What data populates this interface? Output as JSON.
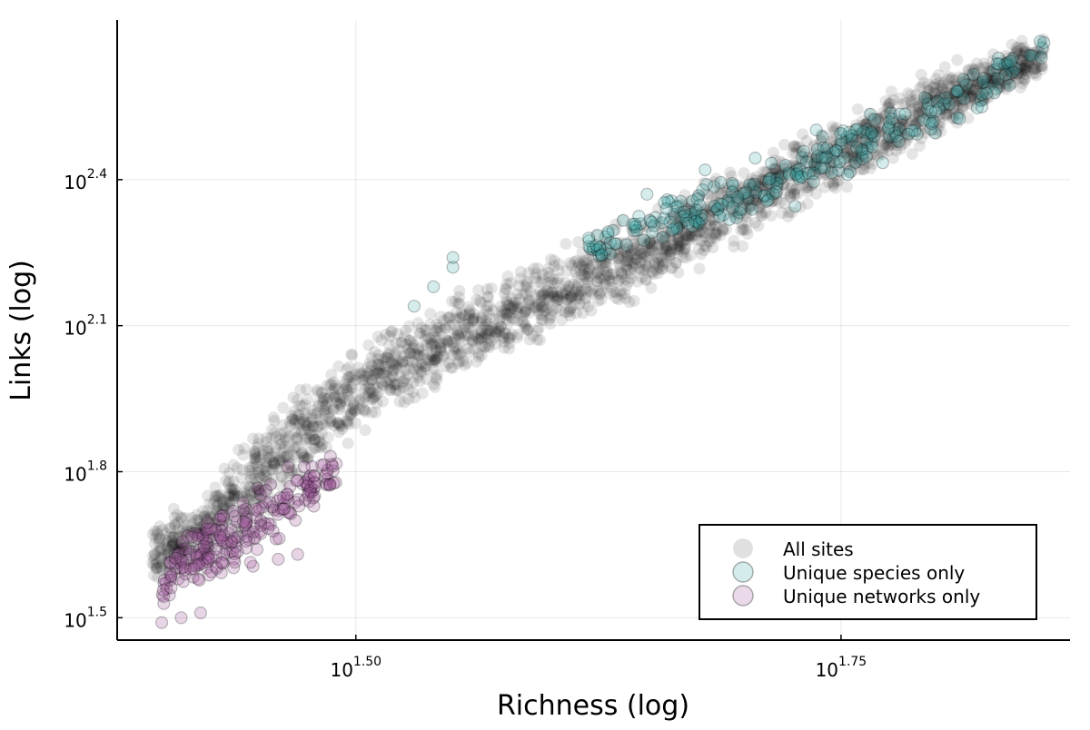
{
  "chart_data": {
    "type": "scatter",
    "title": "",
    "xlabel": "Richness (log)",
    "ylabel": "Links (log)",
    "xscale": "log10",
    "yscale": "log10",
    "x_tick_labels": [
      {
        "base": "10",
        "exp": "1.50",
        "value": 1.5
      },
      {
        "base": "10",
        "exp": "1.75",
        "value": 1.75
      }
    ],
    "y_tick_labels": [
      {
        "base": "10",
        "exp": "1.5",
        "value": 1.5
      },
      {
        "base": "10",
        "exp": "1.8",
        "value": 1.8
      },
      {
        "base": "10",
        "exp": "2.1",
        "value": 2.1
      },
      {
        "base": "10",
        "exp": "2.4",
        "value": 2.4
      }
    ],
    "xlim_log10": [
      1.377,
      1.868
    ],
    "ylim_log10": [
      1.454,
      2.728
    ],
    "grid": true,
    "legend_position": "bottom-right",
    "series": [
      {
        "name": "All sites",
        "color": "#000000",
        "band": [
          [
            1.395,
            1.55,
            1.72
          ],
          [
            1.42,
            1.57,
            1.77
          ],
          [
            1.45,
            1.66,
            1.93
          ],
          [
            1.48,
            1.78,
            2.03
          ],
          [
            1.51,
            1.88,
            2.1
          ],
          [
            1.55,
            1.96,
            2.18
          ],
          [
            1.6,
            2.05,
            2.27
          ],
          [
            1.65,
            2.15,
            2.35
          ],
          [
            1.7,
            2.25,
            2.46
          ],
          [
            1.75,
            2.36,
            2.55
          ],
          [
            1.8,
            2.47,
            2.65
          ],
          [
            1.855,
            2.6,
            2.71
          ]
        ]
      },
      {
        "name": "Unique species only",
        "color": "#3aa9a9",
        "band": [
          [
            1.62,
            2.2,
            2.3
          ],
          [
            1.66,
            2.26,
            2.38
          ],
          [
            1.7,
            2.29,
            2.45
          ],
          [
            1.74,
            2.35,
            2.52
          ],
          [
            1.78,
            2.43,
            2.58
          ],
          [
            1.82,
            2.52,
            2.66
          ],
          [
            1.855,
            2.63,
            2.71
          ]
        ],
        "outliers": [
          [
            1.55,
            2.22
          ],
          [
            1.55,
            2.24
          ],
          [
            1.54,
            2.18
          ],
          [
            1.53,
            2.14
          ],
          [
            1.62,
            2.28
          ],
          [
            1.65,
            2.37
          ],
          [
            1.66,
            2.34
          ],
          [
            1.68,
            2.42
          ]
        ]
      },
      {
        "name": "Unique networks only",
        "color": "#a0569a",
        "band": [
          [
            1.4,
            1.49,
            1.62
          ],
          [
            1.41,
            1.52,
            1.7
          ],
          [
            1.43,
            1.55,
            1.75
          ],
          [
            1.45,
            1.6,
            1.79
          ],
          [
            1.47,
            1.68,
            1.83
          ],
          [
            1.49,
            1.75,
            1.86
          ]
        ],
        "outliers": [
          [
            1.4,
            1.49
          ],
          [
            1.41,
            1.5
          ],
          [
            1.42,
            1.51
          ],
          [
            1.46,
            1.62
          ],
          [
            1.47,
            1.63
          ]
        ]
      }
    ]
  }
}
